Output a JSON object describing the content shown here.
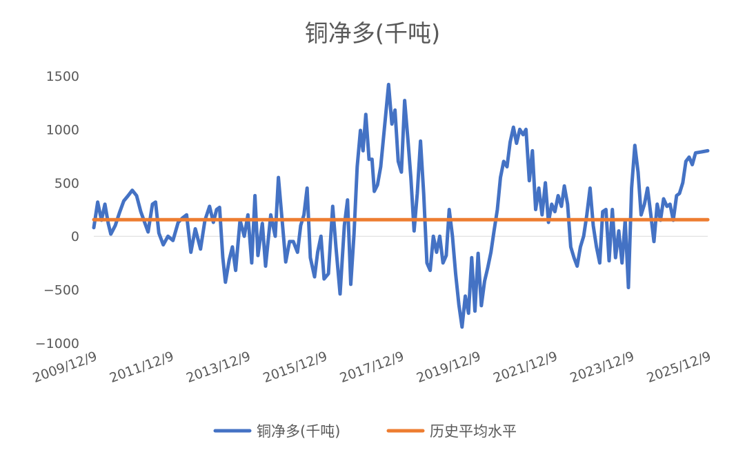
{
  "chart_data": {
    "type": "line",
    "title": "铜净多(千吨)",
    "xlabel": "",
    "ylabel": "",
    "x_range": [
      "2009/12/9",
      "2025/12/9"
    ],
    "xticks": [
      "2009/12/9",
      "2011/12/9",
      "2013/12/9",
      "2015/12/9",
      "2017/12/9",
      "2019/12/9",
      "2021/12/9",
      "2023/12/9",
      "2025/12/9"
    ],
    "yticks": [
      "1500",
      "1000",
      "500",
      "0",
      "−500",
      "−1000"
    ],
    "ylim": [
      -1000,
      1500
    ],
    "grid": false,
    "legend_position": "bottom",
    "colors": {
      "series1": "#4472C4",
      "series2": "#ED7D31",
      "text": "#595959",
      "axis": "#D9D9D9"
    },
    "series": [
      {
        "name": "铜净多(千吨)",
        "points": [
          [
            "2009-12-09",
            80
          ],
          [
            "2010-01-15",
            320
          ],
          [
            "2010-02-20",
            150
          ],
          [
            "2010-03-25",
            300
          ],
          [
            "2010-04-25",
            120
          ],
          [
            "2010-05-20",
            20
          ],
          [
            "2010-07-01",
            100
          ],
          [
            "2010-08-10",
            220
          ],
          [
            "2010-09-20",
            330
          ],
          [
            "2010-11-01",
            380
          ],
          [
            "2010-12-10",
            430
          ],
          [
            "2011-01-20",
            380
          ],
          [
            "2011-03-01",
            230
          ],
          [
            "2011-04-10",
            120
          ],
          [
            "2011-05-10",
            40
          ],
          [
            "2011-06-20",
            300
          ],
          [
            "2011-07-20",
            320
          ],
          [
            "2011-08-20",
            30
          ],
          [
            "2011-10-01",
            -80
          ],
          [
            "2011-11-15",
            0
          ],
          [
            "2012-01-01",
            -40
          ],
          [
            "2012-02-20",
            130
          ],
          [
            "2012-04-01",
            170
          ],
          [
            "2012-05-10",
            200
          ],
          [
            "2012-06-20",
            -150
          ],
          [
            "2012-08-01",
            70
          ],
          [
            "2012-09-20",
            -120
          ],
          [
            "2012-11-01",
            150
          ],
          [
            "2012-12-15",
            280
          ],
          [
            "2013-01-20",
            130
          ],
          [
            "2013-02-20",
            250
          ],
          [
            "2013-03-20",
            270
          ],
          [
            "2013-04-20",
            -200
          ],
          [
            "2013-05-15",
            -430
          ],
          [
            "2013-06-20",
            -220
          ],
          [
            "2013-07-20",
            -100
          ],
          [
            "2013-08-20",
            -320
          ],
          [
            "2013-10-01",
            150
          ],
          [
            "2013-11-10",
            0
          ],
          [
            "2013-12-15",
            200
          ],
          [
            "2014-01-20",
            -250
          ],
          [
            "2014-02-20",
            380
          ],
          [
            "2014-03-20",
            -180
          ],
          [
            "2014-05-01",
            120
          ],
          [
            "2014-06-01",
            -280
          ],
          [
            "2014-07-20",
            200
          ],
          [
            "2014-09-01",
            0
          ],
          [
            "2014-10-01",
            550
          ],
          [
            "2014-11-01",
            200
          ],
          [
            "2014-12-10",
            -240
          ],
          [
            "2015-01-15",
            -50
          ],
          [
            "2015-02-20",
            -50
          ],
          [
            "2015-04-01",
            -150
          ],
          [
            "2015-05-01",
            100
          ],
          [
            "2015-06-01",
            200
          ],
          [
            "2015-07-01",
            450
          ],
          [
            "2015-08-01",
            -200
          ],
          [
            "2015-09-10",
            -380
          ],
          [
            "2015-10-10",
            -150
          ],
          [
            "2015-11-10",
            0
          ],
          [
            "2015-12-10",
            -400
          ],
          [
            "2016-01-20",
            -350
          ],
          [
            "2016-03-01",
            280
          ],
          [
            "2016-04-01",
            -100
          ],
          [
            "2016-05-10",
            -540
          ],
          [
            "2016-06-20",
            100
          ],
          [
            "2016-07-20",
            340
          ],
          [
            "2016-08-20",
            -450
          ],
          [
            "2016-09-20",
            20
          ],
          [
            "2016-10-20",
            650
          ],
          [
            "2016-11-20",
            990
          ],
          [
            "2016-12-15",
            800
          ],
          [
            "2017-01-10",
            1140
          ],
          [
            "2017-02-10",
            720
          ],
          [
            "2017-03-10",
            720
          ],
          [
            "2017-04-01",
            420
          ],
          [
            "2017-05-01",
            480
          ],
          [
            "2017-06-01",
            650
          ],
          [
            "2017-07-15",
            1100
          ],
          [
            "2017-08-15",
            1420
          ],
          [
            "2017-09-15",
            1050
          ],
          [
            "2017-10-15",
            1180
          ],
          [
            "2017-11-15",
            700
          ],
          [
            "2017-12-15",
            600
          ],
          [
            "2018-01-15",
            1270
          ],
          [
            "2018-02-15",
            900
          ],
          [
            "2018-03-15",
            550
          ],
          [
            "2018-04-15",
            50
          ],
          [
            "2018-05-15",
            400
          ],
          [
            "2018-06-15",
            890
          ],
          [
            "2018-07-15",
            400
          ],
          [
            "2018-08-15",
            -250
          ],
          [
            "2018-09-15",
            -320
          ],
          [
            "2018-10-15",
            0
          ],
          [
            "2018-11-15",
            -150
          ],
          [
            "2018-12-15",
            0
          ],
          [
            "2019-01-15",
            -250
          ],
          [
            "2019-02-15",
            -180
          ],
          [
            "2019-03-15",
            250
          ],
          [
            "2019-04-15",
            0
          ],
          [
            "2019-05-15",
            -350
          ],
          [
            "2019-06-15",
            -640
          ],
          [
            "2019-07-15",
            -850
          ],
          [
            "2019-08-15",
            -560
          ],
          [
            "2019-09-15",
            -720
          ],
          [
            "2019-10-15",
            -200
          ],
          [
            "2019-11-15",
            -700
          ],
          [
            "2019-12-15",
            -160
          ],
          [
            "2020-01-15",
            -650
          ],
          [
            "2020-02-15",
            -420
          ],
          [
            "2020-03-15",
            -300
          ],
          [
            "2020-04-15",
            -150
          ],
          [
            "2020-05-15",
            50
          ],
          [
            "2020-06-15",
            250
          ],
          [
            "2020-07-15",
            550
          ],
          [
            "2020-08-15",
            700
          ],
          [
            "2020-09-15",
            650
          ],
          [
            "2020-10-15",
            880
          ],
          [
            "2020-11-15",
            1020
          ],
          [
            "2020-12-15",
            870
          ],
          [
            "2021-01-15",
            1000
          ],
          [
            "2021-02-15",
            950
          ],
          [
            "2021-03-15",
            1000
          ],
          [
            "2021-04-15",
            520
          ],
          [
            "2021-05-15",
            800
          ],
          [
            "2021-06-15",
            250
          ],
          [
            "2021-07-15",
            450
          ],
          [
            "2021-08-15",
            200
          ],
          [
            "2021-09-15",
            500
          ],
          [
            "2021-10-15",
            130
          ],
          [
            "2021-11-15",
            300
          ],
          [
            "2021-12-15",
            230
          ],
          [
            "2022-01-15",
            380
          ],
          [
            "2022-02-15",
            280
          ],
          [
            "2022-03-15",
            470
          ],
          [
            "2022-04-15",
            300
          ],
          [
            "2022-05-15",
            -100
          ],
          [
            "2022-06-15",
            -200
          ],
          [
            "2022-07-15",
            -280
          ],
          [
            "2022-08-15",
            -100
          ],
          [
            "2022-09-15",
            0
          ],
          [
            "2022-10-15",
            200
          ],
          [
            "2022-11-15",
            450
          ],
          [
            "2022-12-15",
            100
          ],
          [
            "2023-01-15",
            -100
          ],
          [
            "2023-02-15",
            -250
          ],
          [
            "2023-03-15",
            230
          ],
          [
            "2023-04-15",
            250
          ],
          [
            "2023-05-15",
            -230
          ],
          [
            "2023-06-15",
            250
          ],
          [
            "2023-07-15",
            -200
          ],
          [
            "2023-08-15",
            50
          ],
          [
            "2023-09-15",
            -250
          ],
          [
            "2023-10-15",
            150
          ],
          [
            "2023-11-15",
            -480
          ],
          [
            "2023-12-15",
            450
          ],
          [
            "2024-01-15",
            850
          ],
          [
            "2024-02-15",
            600
          ],
          [
            "2024-03-15",
            200
          ],
          [
            "2024-04-15",
            300
          ],
          [
            "2024-05-15",
            450
          ],
          [
            "2024-06-15",
            200
          ],
          [
            "2024-07-15",
            -50
          ],
          [
            "2024-08-15",
            300
          ],
          [
            "2024-09-15",
            150
          ],
          [
            "2024-10-15",
            350
          ],
          [
            "2024-11-15",
            280
          ],
          [
            "2024-12-15",
            300
          ],
          [
            "2025-01-15",
            150
          ],
          [
            "2025-02-15",
            380
          ],
          [
            "2025-03-15",
            400
          ],
          [
            "2025-04-15",
            500
          ],
          [
            "2025-05-15",
            700
          ],
          [
            "2025-06-15",
            740
          ],
          [
            "2025-07-15",
            670
          ],
          [
            "2025-08-15",
            780
          ],
          [
            "2025-12-09",
            800
          ]
        ]
      },
      {
        "name": "历史平均水平",
        "points": [
          [
            "2009-12-09",
            155
          ],
          [
            "2025-12-09",
            155
          ]
        ]
      }
    ]
  }
}
